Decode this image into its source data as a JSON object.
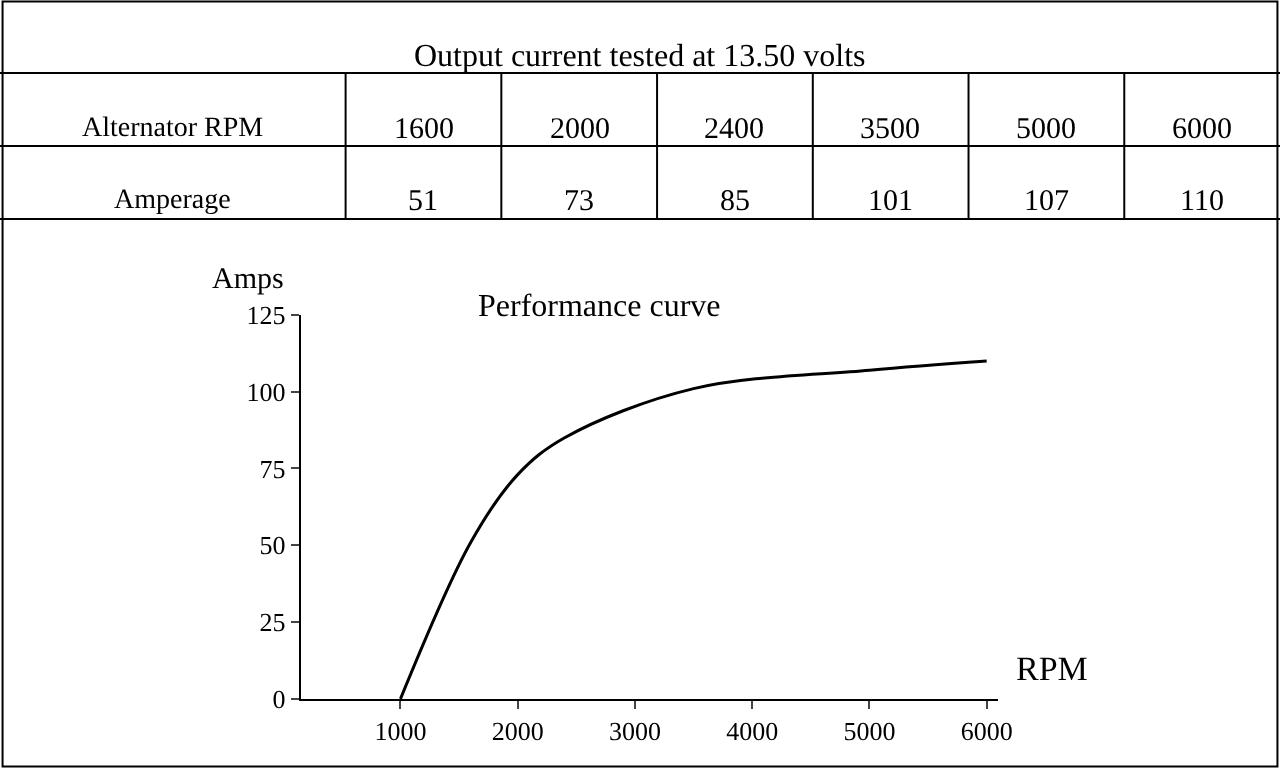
{
  "chart_data": [
    {
      "type": "other",
      "title": "Output current tested at 13.50 volts",
      "annotations": [
        "Alternator RPM",
        "Amperage"
      ],
      "categories": [
        "1600",
        "2000",
        "2400",
        "3500",
        "5000",
        "6000"
      ],
      "values": [
        51,
        73,
        85,
        101,
        107,
        110
      ],
      "data_labels": true
    },
    {
      "type": "line",
      "subtitle": "Performance curve",
      "xlabel": "RPM",
      "ylabel": "Amps",
      "x": [
        1000,
        1600,
        2000,
        2400,
        3500,
        5000,
        6000
      ],
      "series": [
        {
          "color": "#000000",
          "values": [
            0,
            51,
            73,
            85,
            101,
            107,
            110
          ]
        }
      ],
      "xlim": [
        150,
        6100
      ],
      "xticks": [
        1000,
        2000,
        3000,
        4000,
        5000,
        6000
      ],
      "ylim": [
        0,
        125
      ],
      "yticks": [
        0,
        25,
        50,
        75,
        100,
        125
      ],
      "marker": "none",
      "line_style": "solid"
    }
  ]
}
